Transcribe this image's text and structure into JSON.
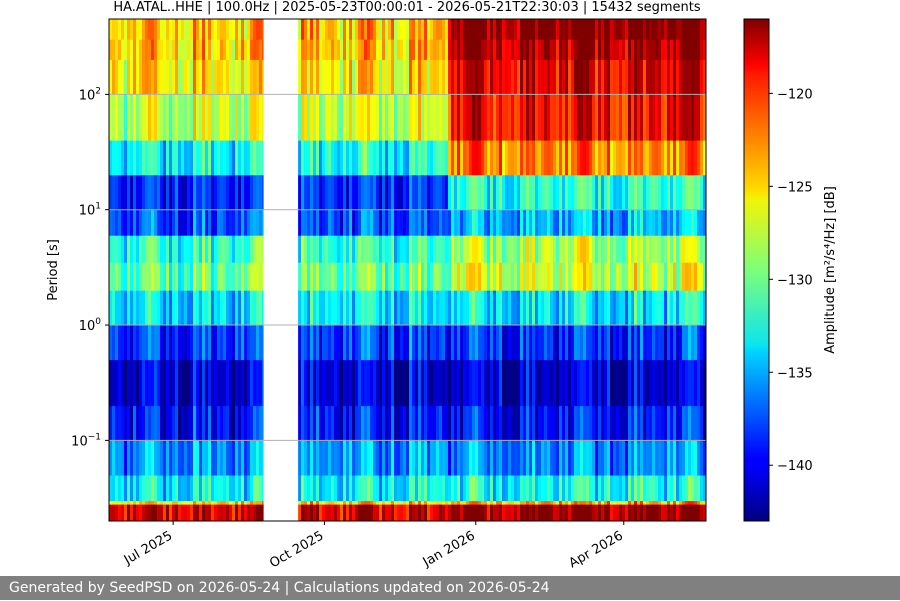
{
  "chart_data": {
    "type": "heatmap",
    "title": "HA.ATAL..HHE | 100.0Hz | 2025-05-23T00:00:01 - 2026-05-21T22:30:03 | 15432 segments",
    "ylabel": "Period [s]",
    "colorbar_label": "Amplitude [m²/s⁴/Hz] [dB]",
    "x_range": [
      "2025-05-23",
      "2026-05-21"
    ],
    "x_ticks": [
      {
        "date": "2025-07-01",
        "label": "Jul 2025"
      },
      {
        "date": "2025-10-01",
        "label": "Oct 2025"
      },
      {
        "date": "2026-01-01",
        "label": "Jan 2026"
      },
      {
        "date": "2026-04-01",
        "label": "Apr 2026"
      }
    ],
    "y_scale": "log",
    "y_range": [
      0.02,
      450
    ],
    "y_ticks": [
      {
        "value": 0.1,
        "base": "10",
        "exp": "−1"
      },
      {
        "value": 1,
        "base": "10",
        "exp": "0"
      },
      {
        "value": 10,
        "base": "10",
        "exp": "1"
      },
      {
        "value": 100,
        "base": "10",
        "exp": "2"
      }
    ],
    "color_range": [
      -143,
      -116
    ],
    "colorbar_ticks": [
      -120,
      -125,
      -130,
      -135,
      -140
    ],
    "colorbar_tick_labels": [
      "−120",
      "−125",
      "−130",
      "−135",
      "−140"
    ],
    "colormap": "jet",
    "data_gap": [
      "2025-08-25",
      "2025-09-15"
    ],
    "band_profile": [
      {
        "period": 0.02,
        "before_dec": -118,
        "after_dec": -116
      },
      {
        "period": 0.028,
        "before_dec": -118,
        "after_dec": -117
      },
      {
        "period": 0.03,
        "before_dec": -132,
        "after_dec": -131
      },
      {
        "period": 0.05,
        "before_dec": -134,
        "after_dec": -134
      },
      {
        "period": 0.1,
        "before_dec": -137,
        "after_dec": -138
      },
      {
        "period": 0.2,
        "before_dec": -141,
        "after_dec": -141
      },
      {
        "period": 0.5,
        "before_dec": -140,
        "after_dec": -140
      },
      {
        "period": 1,
        "before_dec": -136,
        "after_dec": -137
      },
      {
        "period": 2,
        "before_dec": -131,
        "after_dec": -130
      },
      {
        "period": 3.5,
        "before_dec": -129,
        "after_dec": -125
      },
      {
        "period": 6,
        "before_dec": -134,
        "after_dec": -132
      },
      {
        "period": 10,
        "before_dec": -141,
        "after_dec": -138
      },
      {
        "period": 20,
        "before_dec": -136,
        "after_dec": -126
      },
      {
        "period": 40,
        "before_dec": -129,
        "after_dec": -120
      },
      {
        "period": 100,
        "before_dec": -126,
        "after_dec": -119
      },
      {
        "period": 200,
        "before_dec": -125,
        "after_dec": -118
      },
      {
        "period": 300,
        "before_dec": -124,
        "after_dec": -116
      },
      {
        "period": 450,
        "before_dec": -125,
        "after_dec": -116
      }
    ],
    "grid": true
  },
  "footer": {
    "text": "Generated by SeedPSD on 2026-05-24 | Calculations updated on 2026-05-24"
  }
}
